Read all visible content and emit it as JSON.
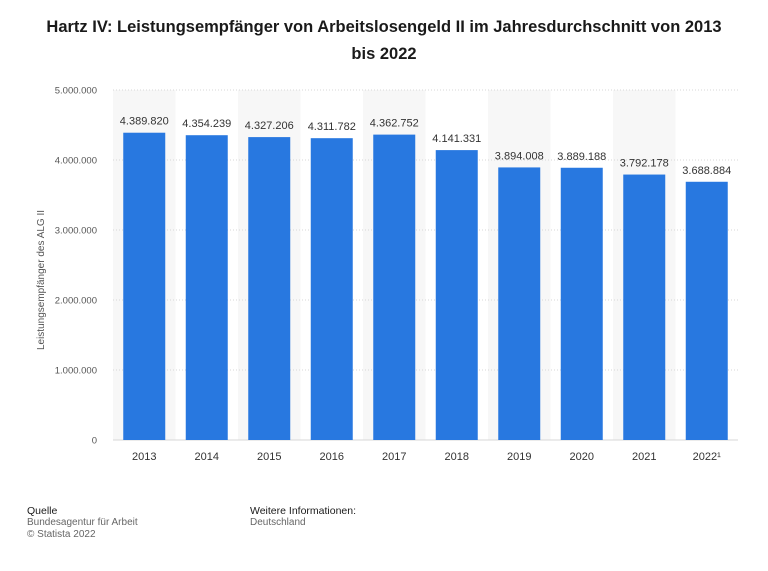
{
  "title": "Hartz IV: Leistungsempfänger von Arbeitslosengeld II im Jahresdurchschnitt von 2013 bis 2022",
  "footer": {
    "source_heading": "Quelle",
    "source": "Bundesagentur für Arbeit",
    "copyright": "© Statista 2022",
    "more_heading": "Weitere Informationen:",
    "region": "Deutschland"
  },
  "colors": {
    "bar": "#2878e0",
    "band": "#f7f7f7",
    "grid": "#d7d7d7",
    "axis_text": "#555555"
  },
  "chart_data": {
    "type": "bar",
    "categories": [
      "2013",
      "2014",
      "2015",
      "2016",
      "2017",
      "2018",
      "2019",
      "2020",
      "2021",
      "2022¹"
    ],
    "values": [
      4389820,
      4354239,
      4327206,
      4311782,
      4362752,
      4141331,
      3894008,
      3889188,
      3792178,
      3688884
    ],
    "value_labels": [
      "4.389.820",
      "4.354.239",
      "4.327.206",
      "4.311.782",
      "4.362.752",
      "4.141.331",
      "3.894.008",
      "3.889.188",
      "3.792.178",
      "3.688.884"
    ],
    "ylabel": "Leistungsempfänger des ALG II",
    "xlabel": "",
    "ylim": [
      0,
      5000000
    ],
    "yticks": [
      0,
      1000000,
      2000000,
      3000000,
      4000000,
      5000000
    ],
    "ytick_labels": [
      "0",
      "1.000.000",
      "2.000.000",
      "3.000.000",
      "4.000.000",
      "5.000.000"
    ],
    "grid": true
  }
}
